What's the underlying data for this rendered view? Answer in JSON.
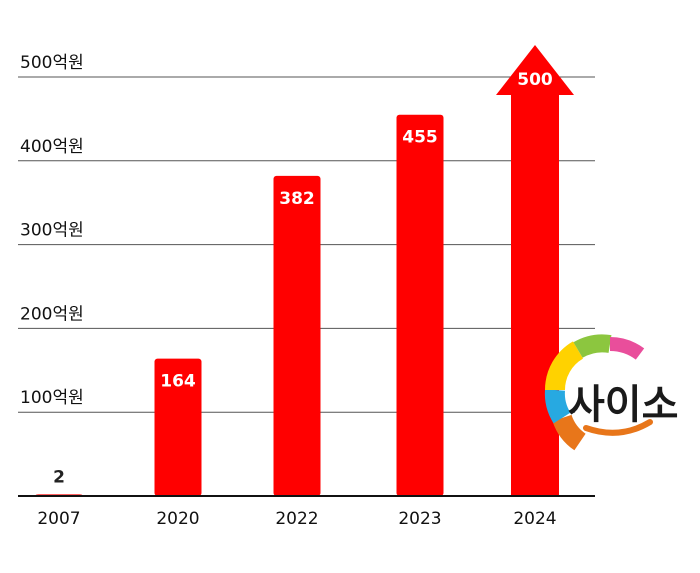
{
  "chart_data": {
    "type": "bar",
    "title": "",
    "xlabel": "",
    "ylabel": "",
    "categories": [
      "2007",
      "2020",
      "2022",
      "2023",
      "2024"
    ],
    "values": [
      2,
      164,
      382,
      455,
      500
    ],
    "value_labels": [
      "2",
      "164",
      "382",
      "455",
      "500"
    ],
    "ylim": [
      0,
      500
    ],
    "yticks": [
      100,
      200,
      300,
      400,
      500
    ],
    "ytick_labels": [
      "100억원",
      "200억원",
      "300억원",
      "400억원",
      "500억원"
    ],
    "last_bar_style": "arrow",
    "grid": true,
    "bar_color": "#FF0000",
    "label_color": "#FFFFFF"
  },
  "logo": {
    "text": "사이소",
    "ring_colors": [
      "#E8761A",
      "#27A9E1",
      "#FFD200",
      "#8CC63F",
      "#E94E9B"
    ]
  }
}
